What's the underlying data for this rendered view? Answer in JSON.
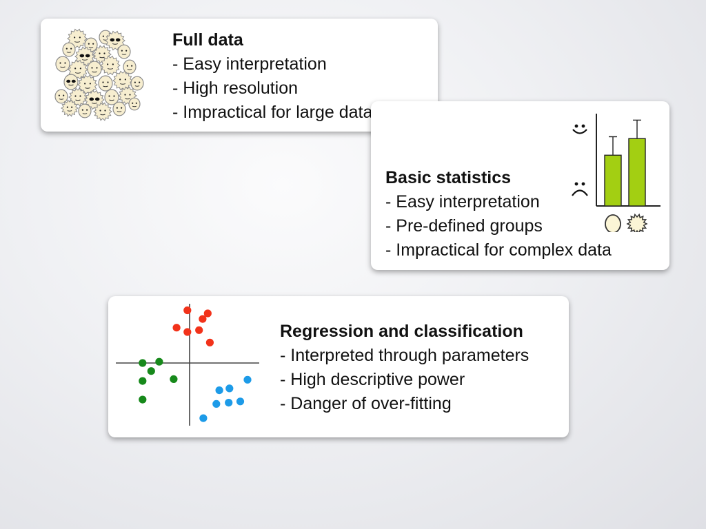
{
  "cards": {
    "full": {
      "title": "Full data",
      "lines": [
        "- Easy interpretation",
        "- High resolution",
        "- Impractical for large datasets"
      ]
    },
    "basic": {
      "title": "Basic statistics",
      "lines": [
        "- Easy interpretation",
        "- Pre-defined groups",
        "- Impractical for complex data"
      ]
    },
    "regression": {
      "title": "Regression and classification",
      "lines": [
        "- Interpreted through parameters",
        "- High descriptive power",
        "- Danger of over-fitting"
      ]
    }
  },
  "icons": [
    "face-crowd-icon",
    "smiley-face-icon",
    "frowny-face-icon",
    "round-face-icon",
    "spiky-face-icon"
  ],
  "colors": {
    "bar_fill": "#a3cf12",
    "cluster_red": "#f2321a",
    "cluster_green": "#17891b",
    "cluster_blue": "#1d9be8"
  },
  "chart_data": [
    {
      "type": "bar",
      "categories": [
        "round-face",
        "spiky-face"
      ],
      "values": [
        0.55,
        0.73
      ],
      "error_bars": [
        0.2,
        0.2
      ],
      "ylim": [
        0,
        1
      ],
      "xlabel": "",
      "ylabel": ""
    },
    {
      "type": "scatter",
      "xlim": [
        -1,
        1
      ],
      "ylim": [
        -1,
        1
      ],
      "series": [
        {
          "color": "#f2321a",
          "x": [
            -0.03,
            0.25,
            0.18,
            -0.18,
            -0.03,
            0.13,
            0.28
          ],
          "y": [
            0.85,
            0.8,
            0.71,
            0.57,
            0.5,
            0.53,
            0.33
          ]
        },
        {
          "color": "#17891b",
          "x": [
            -0.65,
            -0.42,
            -0.53,
            -0.22,
            -0.65,
            -0.65
          ],
          "y": [
            0.0,
            0.02,
            -0.13,
            -0.26,
            -0.29,
            -0.59
          ]
        },
        {
          "color": "#1d9be8",
          "x": [
            0.8,
            0.55,
            0.41,
            0.7,
            0.37,
            0.54,
            0.19
          ],
          "y": [
            -0.27,
            -0.41,
            -0.44,
            -0.62,
            -0.66,
            -0.64,
            -0.89
          ]
        }
      ]
    }
  ]
}
